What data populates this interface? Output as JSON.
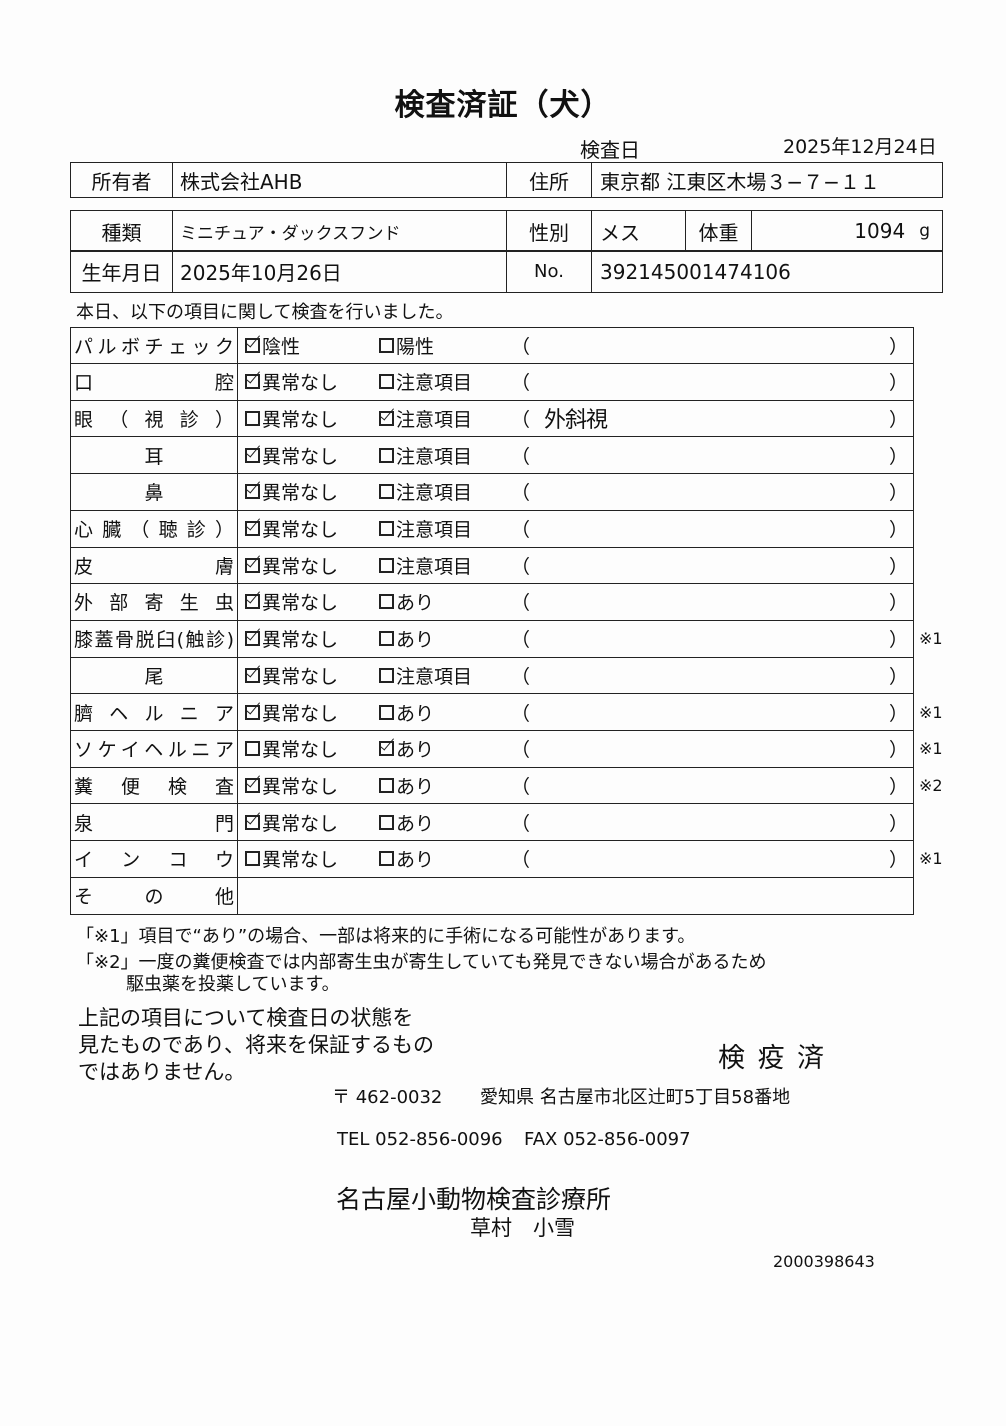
{
  "title": "検査済証（犬）",
  "exam_date_label": "検査日",
  "exam_date": "2025年12月24日",
  "owner": {
    "label": "所有者",
    "value": "株式会社AHB",
    "address_label": "住所",
    "address": "東京都 江東区木場３−７−１１"
  },
  "pet": {
    "breed_label": "種類",
    "breed": "ミニチュア・ダックスフンド",
    "sex_label": "性別",
    "sex": "メス",
    "weight_label": "体重",
    "weight": "1094",
    "weight_unit": "g",
    "birth_label": "生年月日",
    "birth": "2025年10月26日",
    "no_label": "No.",
    "no": "392145001474106"
  },
  "intro": "本日、以下の項目に関して検査を行いました。",
  "items": [
    {
      "label": "パルボチェック",
      "opt1": "陰性",
      "opt2": "陽性",
      "checked": 1,
      "note": "",
      "mark": ""
    },
    {
      "label": "口腔",
      "opt1": "異常なし",
      "opt2": "注意項目",
      "checked": 1,
      "note": "",
      "mark": ""
    },
    {
      "label": "眼（視診）",
      "opt1": "異常なし",
      "opt2": "注意項目",
      "checked": 2,
      "note": "外斜視",
      "mark": ""
    },
    {
      "label": "耳",
      "opt1": "異常なし",
      "opt2": "注意項目",
      "checked": 1,
      "note": "",
      "mark": ""
    },
    {
      "label": "鼻",
      "opt1": "異常なし",
      "opt2": "注意項目",
      "checked": 1,
      "note": "",
      "mark": ""
    },
    {
      "label": "心臓（聴診）",
      "opt1": "異常なし",
      "opt2": "注意項目",
      "checked": 1,
      "note": "",
      "mark": ""
    },
    {
      "label": "皮膚",
      "opt1": "異常なし",
      "opt2": "注意項目",
      "checked": 1,
      "note": "",
      "mark": ""
    },
    {
      "label": "外部寄生虫",
      "opt1": "異常なし",
      "opt2": "あり",
      "checked": 1,
      "note": "",
      "mark": ""
    },
    {
      "label": "膝蓋骨脱臼(触診)",
      "opt1": "異常なし",
      "opt2": "あり",
      "checked": 1,
      "note": "",
      "mark": "※1"
    },
    {
      "label": "尾",
      "opt1": "異常なし",
      "opt2": "注意項目",
      "checked": 1,
      "note": "",
      "mark": ""
    },
    {
      "label": "臍ヘルニア",
      "opt1": "異常なし",
      "opt2": "あり",
      "checked": 1,
      "note": "",
      "mark": "※1"
    },
    {
      "label": "ソケイヘルニア",
      "opt1": "異常なし",
      "opt2": "あり",
      "checked": 2,
      "note": "",
      "mark": "※1"
    },
    {
      "label": "糞便検査",
      "opt1": "異常なし",
      "opt2": "あり",
      "checked": 1,
      "note": "",
      "mark": "※2"
    },
    {
      "label": "泉門",
      "opt1": "異常なし",
      "opt2": "あり",
      "checked": 1,
      "note": "",
      "mark": ""
    },
    {
      "label": "インコウ",
      "opt1": "異常なし",
      "opt2": "あり",
      "checked": 0,
      "note": "",
      "mark": "※1"
    }
  ],
  "other_label": "その他",
  "paren_open": "（",
  "paren_close": "）",
  "footnote1": "「※1」項目で“あり”の場合、一部は将来的に手術になる可能性があります。",
  "footnote2a": "「※2」一度の糞便検査では内部寄生虫が寄生していても発見できない場合があるため",
  "footnote2b": "駆虫薬を投薬しています。",
  "disclaimer": [
    "上記の項目について検査日の状態を",
    "見たものであり、将来を保証するもの",
    "ではありません。"
  ],
  "stamp": "検 疫 済",
  "postal": "〒 462-0032",
  "address": "愛知県 名古屋市北区辻町5丁目58番地",
  "tel": "TEL 052-856-0096",
  "fax": "FAX 052-856-0097",
  "clinic": "名古屋小動物検査診療所",
  "doctor": "草村　小雪",
  "doc_number": "2000398643"
}
